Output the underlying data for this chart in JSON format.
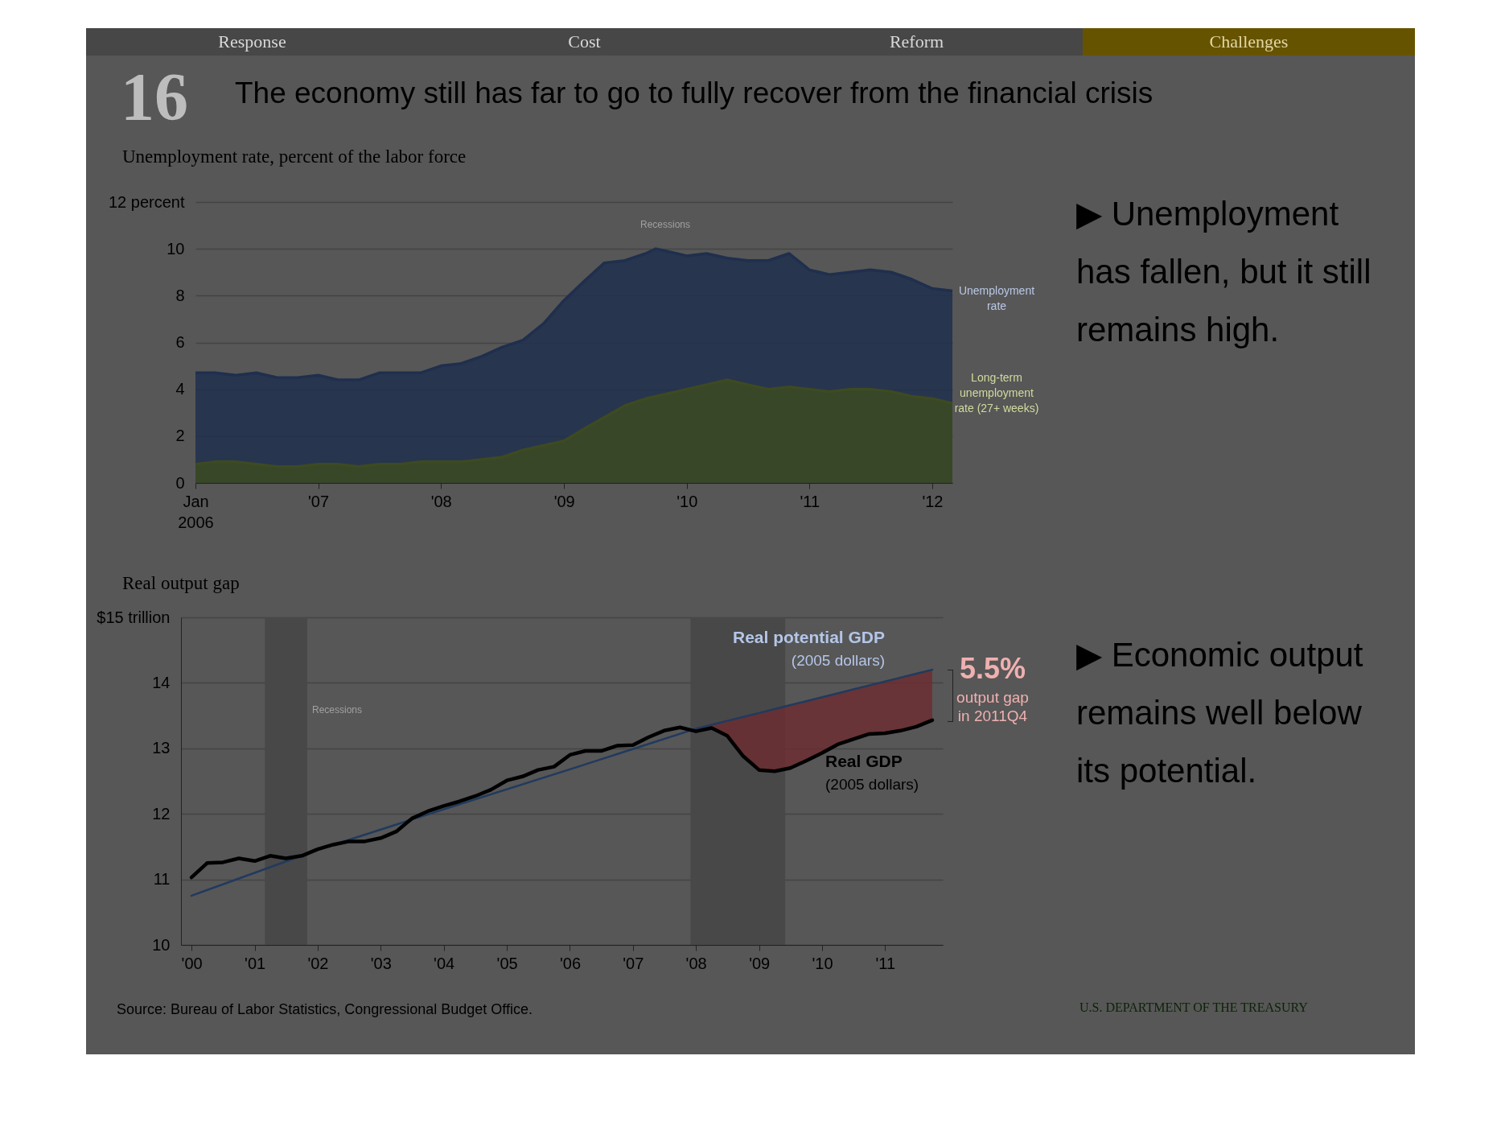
{
  "chart_data": [
    {
      "type": "area",
      "title": "The economy still has far to go to fully recover from the financial crisis",
      "subtitle": "Unemployment rate, percent of the labor force",
      "x": [
        "2006-01",
        "2006-03",
        "2006-05",
        "2006-07",
        "2006-09",
        "2006-11",
        "2007-01",
        "2007-03",
        "2007-05",
        "2007-07",
        "2007-09",
        "2007-11",
        "2008-01",
        "2008-03",
        "2008-05",
        "2008-07",
        "2008-09",
        "2008-11",
        "2009-01",
        "2009-03",
        "2009-05",
        "2009-07",
        "2009-09",
        "2009-10",
        "2009-11",
        "2010-01",
        "2010-03",
        "2010-05",
        "2010-07",
        "2010-09",
        "2010-11",
        "2011-01",
        "2011-03",
        "2011-05",
        "2011-07",
        "2011-09",
        "2011-11",
        "2012-01",
        "2012-03"
      ],
      "series": [
        {
          "name": "Unemployment rate",
          "color": "#1f2f4d",
          "values": [
            4.7,
            4.7,
            4.6,
            4.7,
            4.5,
            4.5,
            4.6,
            4.4,
            4.4,
            4.7,
            4.7,
            4.7,
            5.0,
            5.1,
            5.4,
            5.8,
            6.1,
            6.8,
            7.8,
            8.6,
            9.4,
            9.5,
            9.8,
            10.0,
            9.9,
            9.7,
            9.8,
            9.6,
            9.5,
            9.5,
            9.8,
            9.1,
            8.9,
            9.0,
            9.1,
            9.0,
            8.7,
            8.3,
            8.2
          ]
        },
        {
          "name": "Long-term unemployment rate (27+ weeks)",
          "color": "#3d4a22",
          "values": [
            0.8,
            0.9,
            0.9,
            0.8,
            0.7,
            0.7,
            0.8,
            0.8,
            0.7,
            0.8,
            0.8,
            0.9,
            0.9,
            0.9,
            1.0,
            1.1,
            1.4,
            1.6,
            1.8,
            2.3,
            2.8,
            3.3,
            3.6,
            3.7,
            3.8,
            4.0,
            4.2,
            4.4,
            4.2,
            4.0,
            4.1,
            4.0,
            3.9,
            4.0,
            4.0,
            3.9,
            3.7,
            3.6,
            3.4
          ]
        }
      ],
      "xlim": [
        "2006-01",
        "2012-03"
      ],
      "xticks": [
        {
          "value": "2006-01",
          "label": "Jan\n2006"
        },
        {
          "value": "2007-01",
          "label": "'07"
        },
        {
          "value": "2008-01",
          "label": "'08"
        },
        {
          "value": "2009-01",
          "label": "'09"
        },
        {
          "value": "2010-01",
          "label": "'10"
        },
        {
          "value": "2011-01",
          "label": "'11"
        },
        {
          "value": "2012-01",
          "label": "'12"
        }
      ],
      "ylim": [
        0,
        12
      ],
      "yticks": [
        0,
        2,
        4,
        6,
        8,
        10,
        {
          "value": 12,
          "label": "12 percent"
        }
      ],
      "grid": "y",
      "annotations": [
        "16",
        "Response",
        "Cost",
        "Reform",
        "Challenges",
        "Recessions",
        "▶ Unemployment has fallen, but it still remains high."
      ]
    },
    {
      "type": "line",
      "title": "Real output gap",
      "x": [
        "2000-01",
        "2000-04",
        "2000-07",
        "2000-10",
        "2001-01",
        "2001-04",
        "2001-07",
        "2001-10",
        "2002-01",
        "2002-04",
        "2002-07",
        "2002-10",
        "2003-01",
        "2003-04",
        "2003-07",
        "2003-10",
        "2004-01",
        "2004-04",
        "2004-07",
        "2004-10",
        "2005-01",
        "2005-04",
        "2005-07",
        "2005-10",
        "2006-01",
        "2006-04",
        "2006-07",
        "2006-10",
        "2007-01",
        "2007-04",
        "2007-07",
        "2007-10",
        "2008-01",
        "2008-04",
        "2008-07",
        "2008-10",
        "2009-01",
        "2009-04",
        "2009-07",
        "2009-10",
        "2010-01",
        "2010-04",
        "2010-07",
        "2010-10",
        "2011-01",
        "2011-04",
        "2011-07",
        "2011-10"
      ],
      "series": [
        {
          "name": "Real potential GDP",
          "color": "#213a5e",
          "x": [
            "2000-01",
            "2002-01",
            "2004-01",
            "2006-01",
            "2008-01",
            "2008-04",
            "2008-07",
            "2008-10",
            "2009-01",
            "2009-04",
            "2009-07",
            "2009-10",
            "2010-01",
            "2010-04",
            "2010-07",
            "2010-10",
            "2011-01",
            "2011-04",
            "2011-07",
            "2011-10"
          ],
          "values": [
            10.75,
            11.45,
            12.07,
            12.68,
            13.3,
            13.36,
            13.42,
            13.48,
            13.54,
            13.6,
            13.66,
            13.72,
            13.78,
            13.84,
            13.9,
            13.96,
            14.02,
            14.08,
            14.14,
            14.2
          ],
          "lower": [
            null,
            null,
            null,
            null,
            13.26,
            13.31,
            13.19,
            12.88,
            12.67,
            12.65,
            12.7,
            12.81,
            12.93,
            13.06,
            13.14,
            13.22,
            13.23,
            13.27,
            13.33,
            13.43
          ],
          "upper": [
            null,
            null,
            null,
            null,
            13.3,
            13.36,
            13.42,
            13.48,
            13.54,
            13.6,
            13.66,
            13.72,
            13.78,
            13.84,
            13.9,
            13.96,
            14.02,
            14.08,
            14.14,
            14.2
          ]
        },
        {
          "name": "Real GDP",
          "color": "#000000",
          "values": [
            11.03,
            11.25,
            11.26,
            11.32,
            11.28,
            11.36,
            11.32,
            11.36,
            11.46,
            11.53,
            11.58,
            11.58,
            11.63,
            11.73,
            11.93,
            12.04,
            12.12,
            12.19,
            12.27,
            12.37,
            12.51,
            12.57,
            12.67,
            12.72,
            12.9,
            12.96,
            12.96,
            13.04,
            13.05,
            13.17,
            13.27,
            13.32,
            13.26,
            13.31,
            13.19,
            12.88,
            12.67,
            12.65,
            12.7,
            12.81,
            12.93,
            13.06,
            13.14,
            13.22,
            13.23,
            13.27,
            13.33,
            13.43
          ]
        }
      ],
      "xlim": [
        "1999-11",
        "2011-12"
      ],
      "xticks": [
        {
          "value": "2000-01",
          "label": "'00"
        },
        {
          "value": "2001-01",
          "label": "'01"
        },
        {
          "value": "2002-01",
          "label": "'02"
        },
        {
          "value": "2003-01",
          "label": "'03"
        },
        {
          "value": "2004-01",
          "label": "'04"
        },
        {
          "value": "2005-01",
          "label": "'05"
        },
        {
          "value": "2006-01",
          "label": "'06"
        },
        {
          "value": "2007-01",
          "label": "'07"
        },
        {
          "value": "2008-01",
          "label": "'08"
        },
        {
          "value": "2009-01",
          "label": "'09"
        },
        {
          "value": "2010-01",
          "label": "'10"
        },
        {
          "value": "2011-01",
          "label": "'11"
        }
      ],
      "ylim": [
        10,
        15
      ],
      "yticks": [
        10,
        11,
        12,
        13,
        14,
        {
          "value": 15,
          "label": "$15 trillion"
        }
      ],
      "grid": "y",
      "bands": [
        {
          "axis": "x",
          "from": "2001-03",
          "to": "2001-11",
          "color": "#484848"
        },
        {
          "axis": "x",
          "from": "2007-12",
          "to": "2009-06",
          "color": "#484848"
        }
      ],
      "annotations": [
        "Recessions",
        "5.5%",
        "output gap\nin 2011Q4",
        "▶ Economic output remains well below its potential.",
        "Source: Bureau of Labor Statistics, Congressional Budget Office.",
        "U.S. DEPARTMENT OF THE TREASURY",
        "(2005 dollars)",
        "(2005 dollars)"
      ]
    }
  ]
}
